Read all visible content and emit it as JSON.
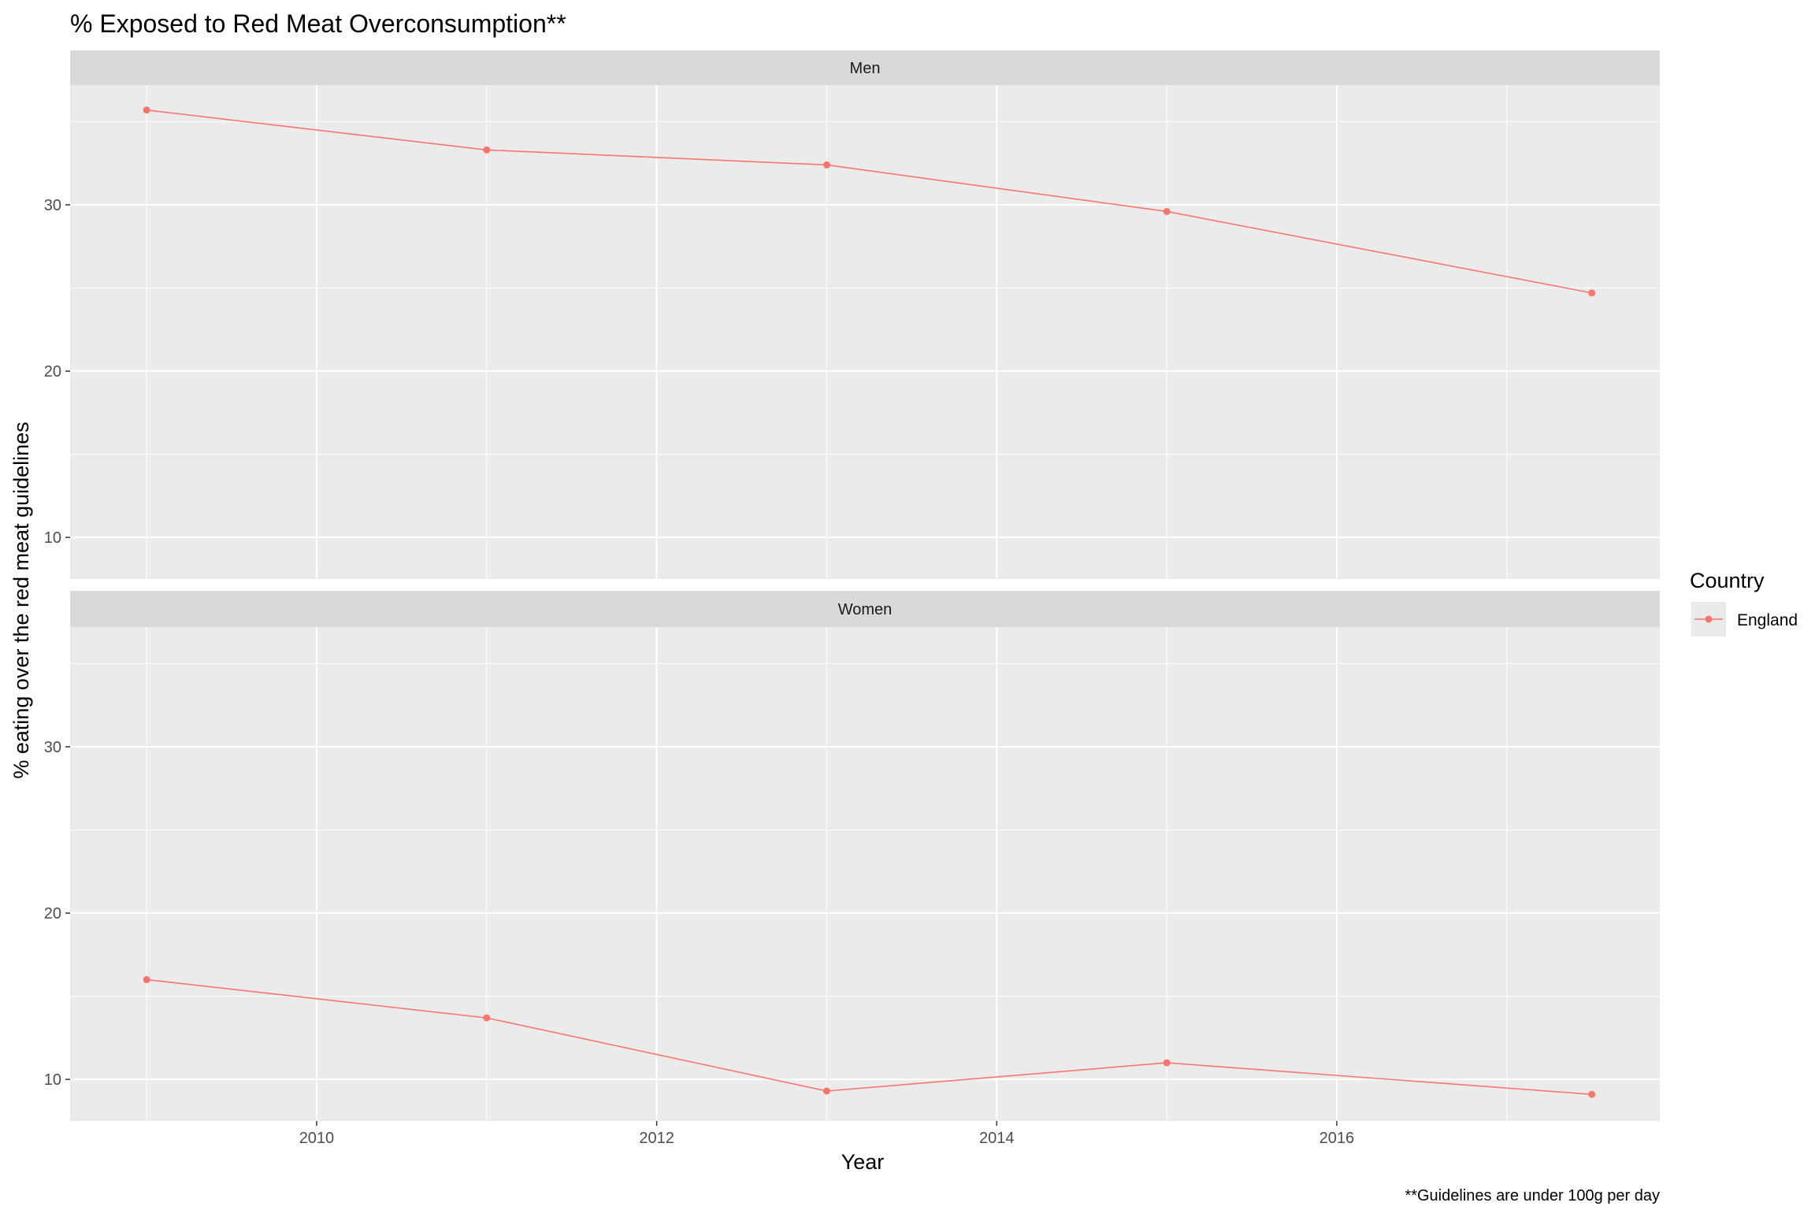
{
  "chart_data": {
    "type": "line",
    "title": "%  Exposed to Red Meat Overconsumption**",
    "xlabel": "Year",
    "ylabel": "% eating over the red meat guidelines",
    "caption": "**Guidelines are under 100g per day",
    "xlim": [
      2008.55,
      2017.9
    ],
    "ylim": [
      7.5,
      37.2
    ],
    "x_ticks": [
      2010,
      2012,
      2014,
      2016
    ],
    "x_tick_labels": [
      "2010",
      "2012",
      "2014",
      "2016"
    ],
    "y_ticks": [
      10,
      20,
      30
    ],
    "y_tick_labels": [
      "10",
      "20",
      "30"
    ],
    "grid": true,
    "legend": {
      "title": "Country",
      "position": "right",
      "entries": [
        "England"
      ]
    },
    "panels": [
      {
        "label": "Men",
        "series": [
          {
            "name": "England",
            "color": "#F8766D",
            "x": [
              2009,
              2011,
              2013,
              2015,
              2017.5
            ],
            "y": [
              35.7,
              33.3,
              32.4,
              29.6,
              24.7
            ]
          }
        ]
      },
      {
        "label": "Women",
        "series": [
          {
            "name": "England",
            "color": "#F8766D",
            "x": [
              2009,
              2011,
              2013,
              2015,
              2017.5
            ],
            "y": [
              16.0,
              13.7,
              9.3,
              11.0,
              9.1
            ]
          }
        ]
      }
    ]
  }
}
